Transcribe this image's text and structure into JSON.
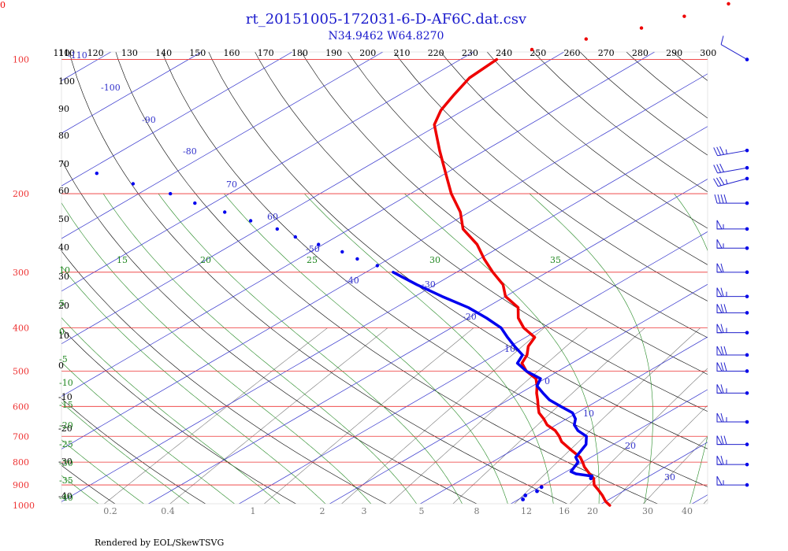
{
  "corner_label": "0",
  "footer": "Rendered by EOL/SkewTSVG",
  "chart_data": {
    "type": "skew-t",
    "title": "rt_20151005-172031-6-D-AF6C.dat.csv",
    "subtitle": "N34.9462 W64.8270",
    "pressure_levels_hpa": [
      "100",
      "200",
      "300",
      "400",
      "500",
      "600",
      "700",
      "800",
      "900",
      "1000"
    ],
    "top_theta_labels": [
      "110",
      "120",
      "130",
      "140",
      "150",
      "160",
      "170",
      "180",
      "190",
      "200",
      "210",
      "220",
      "230",
      "240",
      "250",
      "260",
      "270",
      "280",
      "290",
      "300"
    ],
    "left_theta_labels": [
      "110",
      "100",
      "90",
      "80",
      "70",
      "60",
      "50",
      "40",
      "30",
      "20",
      "10",
      "0",
      "-10",
      "-20",
      "-30",
      "-40"
    ],
    "isotherm_labels": [
      "-110",
      "-100",
      "-90",
      "-80",
      "70",
      "60",
      "-50",
      "-40",
      "-30",
      "-20",
      "10",
      "0",
      "10",
      "20",
      "30"
    ],
    "moist_adiabat_labels": [
      "15",
      "20",
      "25",
      "30",
      "35",
      "10",
      "5",
      "0",
      "-5",
      "-10",
      "-15",
      "-20",
      "-25",
      "-30",
      "-35",
      "-40"
    ],
    "mixing_ratio_labels": [
      "0.2",
      "0.4",
      "1",
      "2",
      "3",
      "5",
      "8",
      "12",
      "16",
      "20",
      "30",
      "40"
    ],
    "colors": {
      "temperature": "#ee0000",
      "dewpoint": "#0000ee",
      "isobar": "#ee3333",
      "isotherm": "#3333cc",
      "dry_adiabat": "#000000",
      "moist_adiabat": "#228822",
      "mixing_ratio": "#777777"
    },
    "temperature_profile": [
      {
        "p": 1000,
        "t": 21.2
      },
      {
        "p": 980,
        "t": 20.0
      },
      {
        "p": 950,
        "t": 18.5
      },
      {
        "p": 925,
        "t": 17.1
      },
      {
        "p": 900,
        "t": 15.6
      },
      {
        "p": 870,
        "t": 14.3
      },
      {
        "p": 850,
        "t": 13.0
      },
      {
        "p": 820,
        "t": 11.1
      },
      {
        "p": 800,
        "t": 10.0
      },
      {
        "p": 780,
        "t": 8.8
      },
      {
        "p": 750,
        "t": 6.3
      },
      {
        "p": 720,
        "t": 3.8
      },
      {
        "p": 700,
        "t": 2.5
      },
      {
        "p": 680,
        "t": 1.0
      },
      {
        "p": 660,
        "t": -1.0
      },
      {
        "p": 640,
        "t": -2.5
      },
      {
        "p": 620,
        "t": -4.2
      },
      {
        "p": 600,
        "t": -5.5
      },
      {
        "p": 580,
        "t": -6.8
      },
      {
        "p": 560,
        "t": -8.2
      },
      {
        "p": 540,
        "t": -9.5
      },
      {
        "p": 520,
        "t": -11.0
      },
      {
        "p": 500,
        "t": -13.5
      },
      {
        "p": 480,
        "t": -15.5
      },
      {
        "p": 460,
        "t": -16.5
      },
      {
        "p": 440,
        "t": -18.0
      },
      {
        "p": 420,
        "t": -19.0
      },
      {
        "p": 400,
        "t": -22.0
      },
      {
        "p": 380,
        "t": -24.5
      },
      {
        "p": 360,
        "t": -26.5
      },
      {
        "p": 340,
        "t": -30.0
      },
      {
        "p": 320,
        "t": -32.5
      },
      {
        "p": 300,
        "t": -36.0
      },
      {
        "p": 280,
        "t": -39.5
      },
      {
        "p": 260,
        "t": -43.0
      },
      {
        "p": 240,
        "t": -47.5
      },
      {
        "p": 220,
        "t": -51.0
      },
      {
        "p": 200,
        "t": -55.5
      },
      {
        "p": 180,
        "t": -60.0
      },
      {
        "p": 160,
        "t": -65.0
      },
      {
        "p": 140,
        "t": -70.5
      },
      {
        "p": 130,
        "t": -72.5
      },
      {
        "p": 120,
        "t": -74.0
      },
      {
        "p": 110,
        "t": -75.5
      },
      {
        "p": 100,
        "t": -76.0
      },
      {
        "p": 95,
        "t": -74.0
      },
      {
        "p": 90,
        "t": -70.0
      },
      {
        "p": 85,
        "t": -66.0
      },
      {
        "p": 80,
        "t": -63.5
      },
      {
        "p": 75,
        "t": -61.0
      },
      {
        "p": 70,
        "t": -59.5
      }
    ],
    "dewpoint_profile": [
      {
        "p": 970,
        "t": 10.5
      },
      {
        "p": 950,
        "t": 10.0
      },
      {
        "p": 930,
        "t": 10.5
      },
      {
        "p": 910,
        "t": 10.2
      },
      {
        "p": 870,
        "t": 14.0
      },
      {
        "p": 860,
        "t": 13.7
      },
      {
        "p": 850,
        "t": 11.5
      },
      {
        "p": 840,
        "t": 10.5
      },
      {
        "p": 820,
        "t": 10.0
      },
      {
        "p": 800,
        "t": 9.5
      },
      {
        "p": 780,
        "t": 8.3
      },
      {
        "p": 760,
        "t": 7.8
      },
      {
        "p": 730,
        "t": 7.0
      },
      {
        "p": 700,
        "t": 5.5
      },
      {
        "p": 680,
        "t": 3.5
      },
      {
        "p": 660,
        "t": 2.0
      },
      {
        "p": 640,
        "t": 1.0
      },
      {
        "p": 620,
        "t": -0.5
      },
      {
        "p": 600,
        "t": -3.0
      },
      {
        "p": 580,
        "t": -5.5
      },
      {
        "p": 560,
        "t": -7.5
      },
      {
        "p": 540,
        "t": -9.5
      },
      {
        "p": 520,
        "t": -10.5
      },
      {
        "p": 500,
        "t": -13.5
      },
      {
        "p": 480,
        "t": -16.0
      },
      {
        "p": 460,
        "t": -17.0
      },
      {
        "p": 440,
        "t": -19.5
      },
      {
        "p": 420,
        "t": -22.0
      },
      {
        "p": 400,
        "t": -24.5
      },
      {
        "p": 380,
        "t": -28.0
      },
      {
        "p": 360,
        "t": -32.0
      },
      {
        "p": 340,
        "t": -37.0
      },
      {
        "p": 320,
        "t": -42.0
      },
      {
        "p": 300,
        "t": -47.0
      },
      {
        "p": 290,
        "t": -50.0
      },
      {
        "p": 280,
        "t": -53.5
      },
      {
        "p": 270,
        "t": -56.5
      },
      {
        "p": 260,
        "t": -60.5
      },
      {
        "p": 250,
        "t": -64.5
      },
      {
        "p": 240,
        "t": -68.0
      },
      {
        "p": 230,
        "t": -72.5
      },
      {
        "p": 220,
        "t": -77.0
      },
      {
        "p": 210,
        "t": -82.0
      },
      {
        "p": 200,
        "t": -86.5
      },
      {
        "p": 190,
        "t": -92.5
      },
      {
        "p": 180,
        "t": -98.5
      }
    ],
    "wind_barbs": [
      {
        "p": 100,
        "dir": 300,
        "kt": 10
      },
      {
        "p": 160,
        "dir": 260,
        "kt": 35
      },
      {
        "p": 175,
        "dir": 260,
        "kt": 30
      },
      {
        "p": 185,
        "dir": 255,
        "kt": 35
      },
      {
        "p": 210,
        "dir": 270,
        "kt": 40
      },
      {
        "p": 240,
        "dir": 270,
        "kt": 55
      },
      {
        "p": 265,
        "dir": 270,
        "kt": 55
      },
      {
        "p": 300,
        "dir": 270,
        "kt": 60
      },
      {
        "p": 340,
        "dir": 270,
        "kt": 65
      },
      {
        "p": 370,
        "dir": 270,
        "kt": 70
      },
      {
        "p": 410,
        "dir": 270,
        "kt": 65
      },
      {
        "p": 460,
        "dir": 270,
        "kt": 70
      },
      {
        "p": 500,
        "dir": 270,
        "kt": 70
      },
      {
        "p": 560,
        "dir": 270,
        "kt": 65
      },
      {
        "p": 650,
        "dir": 270,
        "kt": 65
      },
      {
        "p": 730,
        "dir": 270,
        "kt": 70
      },
      {
        "p": 810,
        "dir": 270,
        "kt": 65
      },
      {
        "p": 900,
        "dir": 270,
        "kt": 55
      }
    ]
  }
}
